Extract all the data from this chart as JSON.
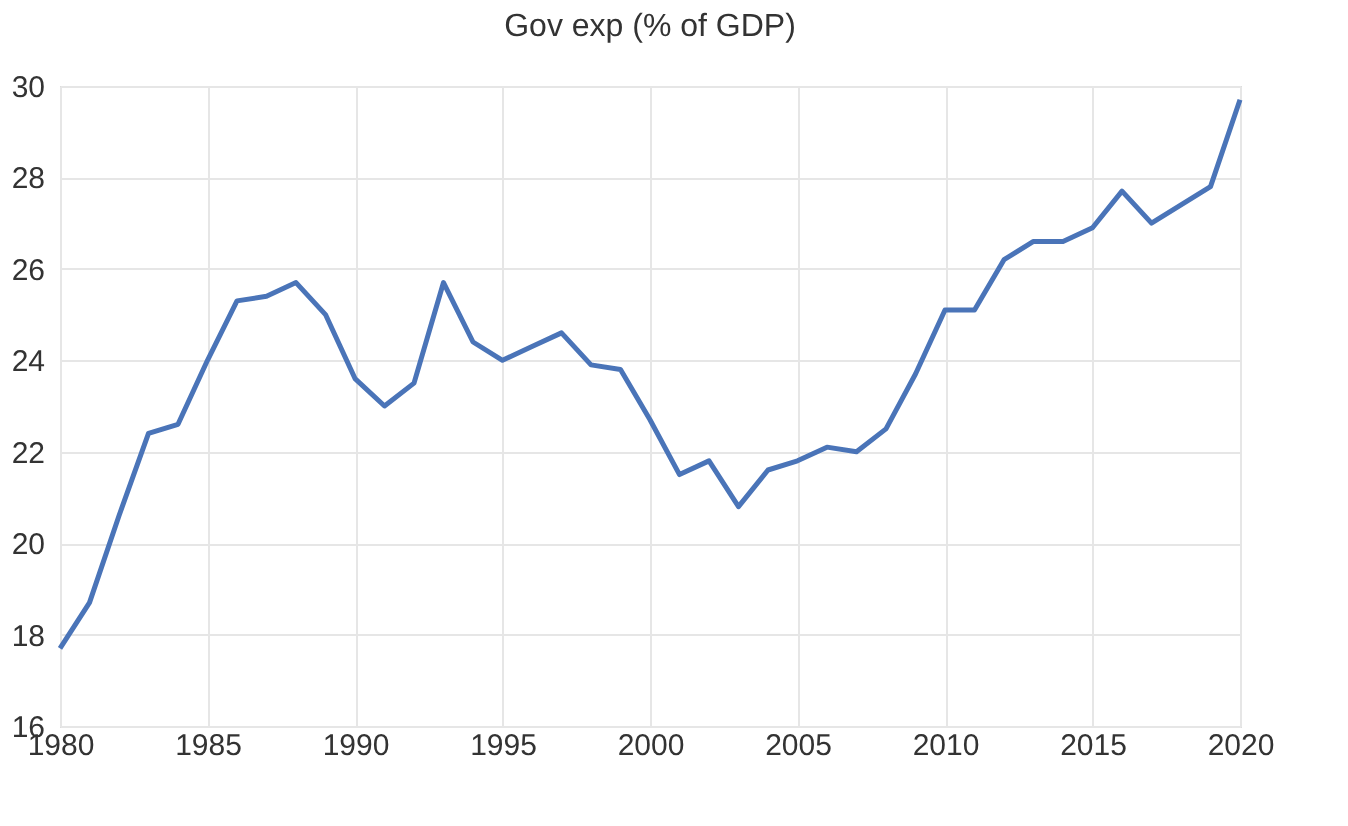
{
  "chart_data": {
    "type": "line",
    "title": "Gov exp (% of GDP)",
    "x": [
      1980,
      1981,
      1982,
      1983,
      1984,
      1985,
      1986,
      1987,
      1988,
      1989,
      1990,
      1991,
      1992,
      1993,
      1994,
      1995,
      1996,
      1997,
      1998,
      1999,
      2000,
      2001,
      2002,
      2003,
      2004,
      2005,
      2006,
      2007,
      2008,
      2009,
      2010,
      2011,
      2012,
      2013,
      2014,
      2015,
      2016,
      2017,
      2018,
      2019,
      2020
    ],
    "series": [
      {
        "color": "#4a74b8",
        "values": [
          17.7,
          18.7,
          20.6,
          22.4,
          22.6,
          24.0,
          25.3,
          25.4,
          25.7,
          25.0,
          23.6,
          23.0,
          23.5,
          25.7,
          24.4,
          24.0,
          24.3,
          24.6,
          23.9,
          23.8,
          22.7,
          21.5,
          21.8,
          20.8,
          21.6,
          21.8,
          22.1,
          22.0,
          22.5,
          23.7,
          25.1,
          25.1,
          26.2,
          26.6,
          26.6,
          26.9,
          27.7,
          27.0,
          27.4,
          27.8,
          29.7
        ]
      }
    ],
    "xlim": [
      1980,
      2020
    ],
    "xticks": [
      1980,
      1985,
      1990,
      1995,
      2000,
      2005,
      2010,
      2015,
      2020
    ],
    "ylim": [
      16,
      30
    ],
    "yticks": [
      16,
      18,
      20,
      22,
      24,
      26,
      28,
      30
    ],
    "grid": true,
    "marker": "none",
    "line_style": "solid"
  }
}
